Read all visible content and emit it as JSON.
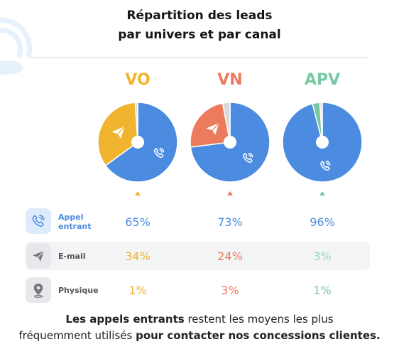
{
  "title_line1": "Répartition des leads",
  "title_line2": "par univers et par canal",
  "chart_data": {
    "type": "pie",
    "title": "Répartition des leads par univers et par canal",
    "series_labels": [
      "Appel entrant",
      "E-mail",
      "Physique"
    ],
    "universes": [
      {
        "name": "VO",
        "values": [
          65,
          34,
          1
        ],
        "value_labels": [
          "65%",
          "34%",
          "1%"
        ]
      },
      {
        "name": "VN",
        "values": [
          73,
          24,
          3
        ],
        "value_labels": [
          "73%",
          "24%",
          "3%"
        ]
      },
      {
        "name": "APV",
        "values": [
          96,
          3,
          1
        ],
        "value_labels": [
          "96%",
          "3%",
          "1%"
        ]
      }
    ]
  },
  "rows": [
    {
      "label": "Appel entrant",
      "label_lines": [
        "Appel",
        "entrant"
      ],
      "icon": "phone-icon"
    },
    {
      "label": "E-mail",
      "label_lines": [
        "E-mail"
      ],
      "icon": "send-icon"
    },
    {
      "label": "Physique",
      "label_lines": [
        "Physique"
      ],
      "icon": "location-pin-icon"
    }
  ],
  "colors": {
    "VO": "#f1b42f",
    "VN": "#ec7a5c",
    "APV": "#78c7a3",
    "phone": "#4b8be0",
    "email_icon": "#777777",
    "physique_icon": "#777777"
  },
  "footer": {
    "part1": "Les appels entrants",
    "part2": " restent les moyens les plus",
    "part3": "fréquemment utilisés ",
    "part4": "pour contacter nos concessions clientes."
  }
}
